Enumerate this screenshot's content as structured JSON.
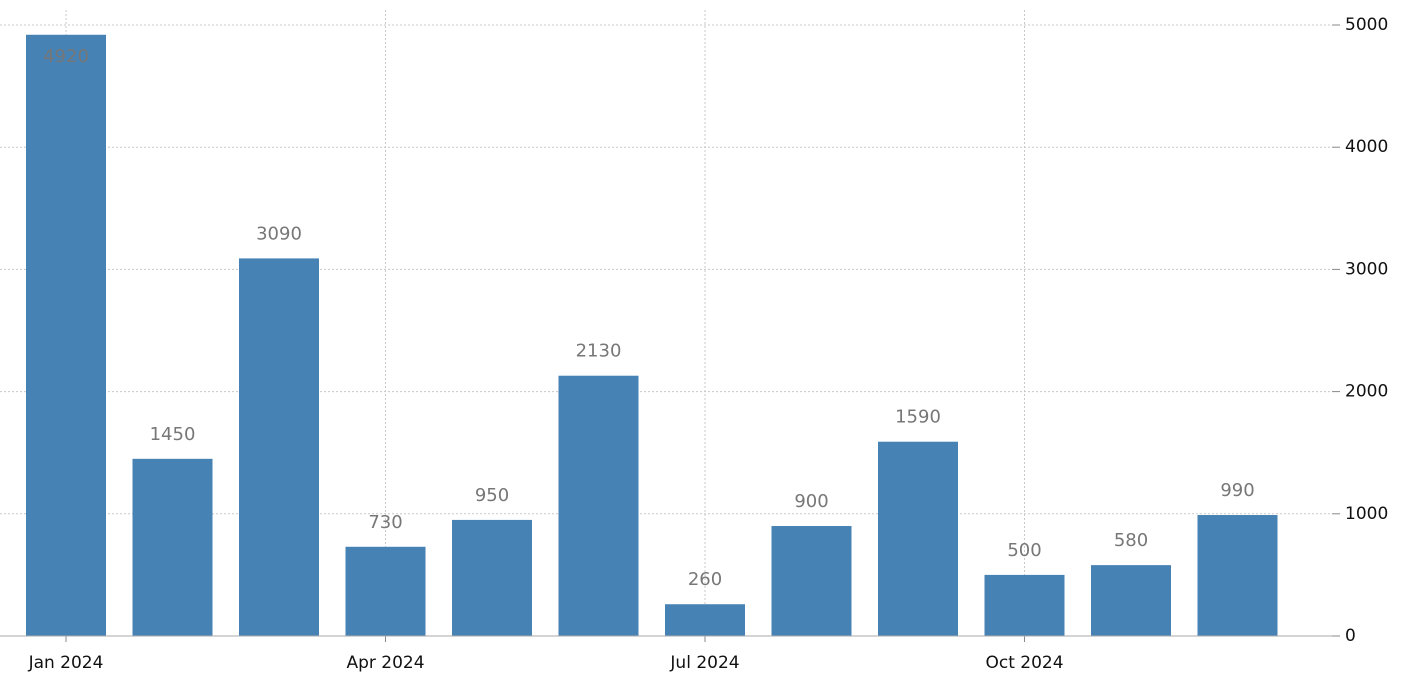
{
  "chart_data": {
    "type": "bar",
    "categories": [
      "Jan 2024",
      null,
      null,
      "Apr 2024",
      null,
      null,
      "Jul 2024",
      null,
      null,
      "Oct 2024",
      null,
      null
    ],
    "values": [
      4920,
      1450,
      3090,
      730,
      950,
      2130,
      260,
      900,
      1590,
      500,
      580,
      990
    ],
    "color": "#4682b4",
    "ylim": [
      0,
      5000
    ],
    "yticks": [
      0,
      1000,
      2000,
      3000,
      4000,
      5000
    ],
    "grid": true
  }
}
